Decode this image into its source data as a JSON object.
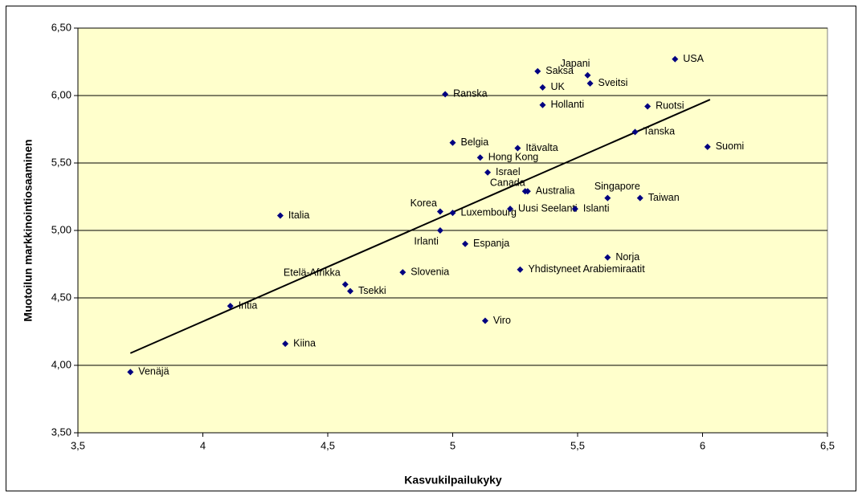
{
  "chart_data": {
    "type": "scatter",
    "xlabel": "Kasvukilpailukyky",
    "ylabel": "Muotoilun markkinointiosaaminen",
    "labels": [
      "Venäjä",
      "Intia",
      "Kiina",
      "Italia",
      "Etelä-Afrikka",
      "Tsekki",
      "Slovenia",
      "Irlanti",
      "Korea",
      "Luxembourg",
      "Espanja",
      "Ranska",
      "Belgia",
      "Hong Kong",
      "Israel",
      "Itävalta",
      "Viro",
      "Canada",
      "Australia",
      "Uusi Seelanti",
      "Yhdistyneet Arabiemiraatit",
      "Saksa",
      "UK",
      "Hollanti",
      "Japani",
      "Sveitsi",
      "Islanti",
      "Singapore",
      "Norja",
      "Tanska",
      "Taiwan",
      "Ruotsi",
      "USA",
      "Suomi"
    ],
    "x": [
      3.71,
      4.11,
      4.33,
      4.31,
      4.57,
      4.59,
      4.8,
      4.95,
      4.95,
      5.0,
      5.05,
      4.97,
      5.0,
      5.11,
      5.14,
      5.26,
      5.13,
      5.29,
      5.3,
      5.23,
      5.27,
      5.34,
      5.36,
      5.36,
      5.54,
      5.55,
      5.49,
      5.62,
      5.62,
      5.73,
      5.75,
      5.78,
      5.89,
      6.02
    ],
    "y": [
      3.95,
      4.44,
      4.16,
      5.11,
      4.6,
      4.55,
      4.69,
      5.0,
      5.14,
      5.13,
      4.9,
      6.01,
      5.65,
      5.54,
      5.43,
      5.61,
      4.33,
      5.29,
      5.29,
      5.16,
      4.71,
      6.18,
      6.06,
      5.93,
      6.15,
      6.09,
      5.16,
      5.24,
      4.8,
      5.73,
      5.24,
      5.92,
      6.27,
      5.62
    ],
    "color": "#000080",
    "trendline": {
      "x": [
        3.71,
        6.03
      ],
      "y": [
        4.09,
        5.97
      ],
      "color": "#000000"
    },
    "xlim": [
      3.5,
      6.5
    ],
    "xticks": [
      {
        "value": 3.5,
        "label": "3,5"
      },
      4,
      {
        "value": 4.5,
        "label": "4,5"
      },
      5,
      {
        "value": 5.5,
        "label": "5,5"
      },
      6,
      {
        "value": 6.5,
        "label": "6,5"
      }
    ],
    "ylim": [
      3.5,
      6.5
    ],
    "yticks": [
      {
        "value": 3.5,
        "label": "3,50"
      },
      {
        "value": 4,
        "label": "4,00"
      },
      {
        "value": 4.5,
        "label": "4,50"
      },
      {
        "value": 5,
        "label": "5,00"
      },
      {
        "value": 5.5,
        "label": "5,50"
      },
      {
        "value": 6,
        "label": "6,00"
      },
      {
        "value": 6.5,
        "label": "6,50"
      }
    ],
    "grid": true
  }
}
